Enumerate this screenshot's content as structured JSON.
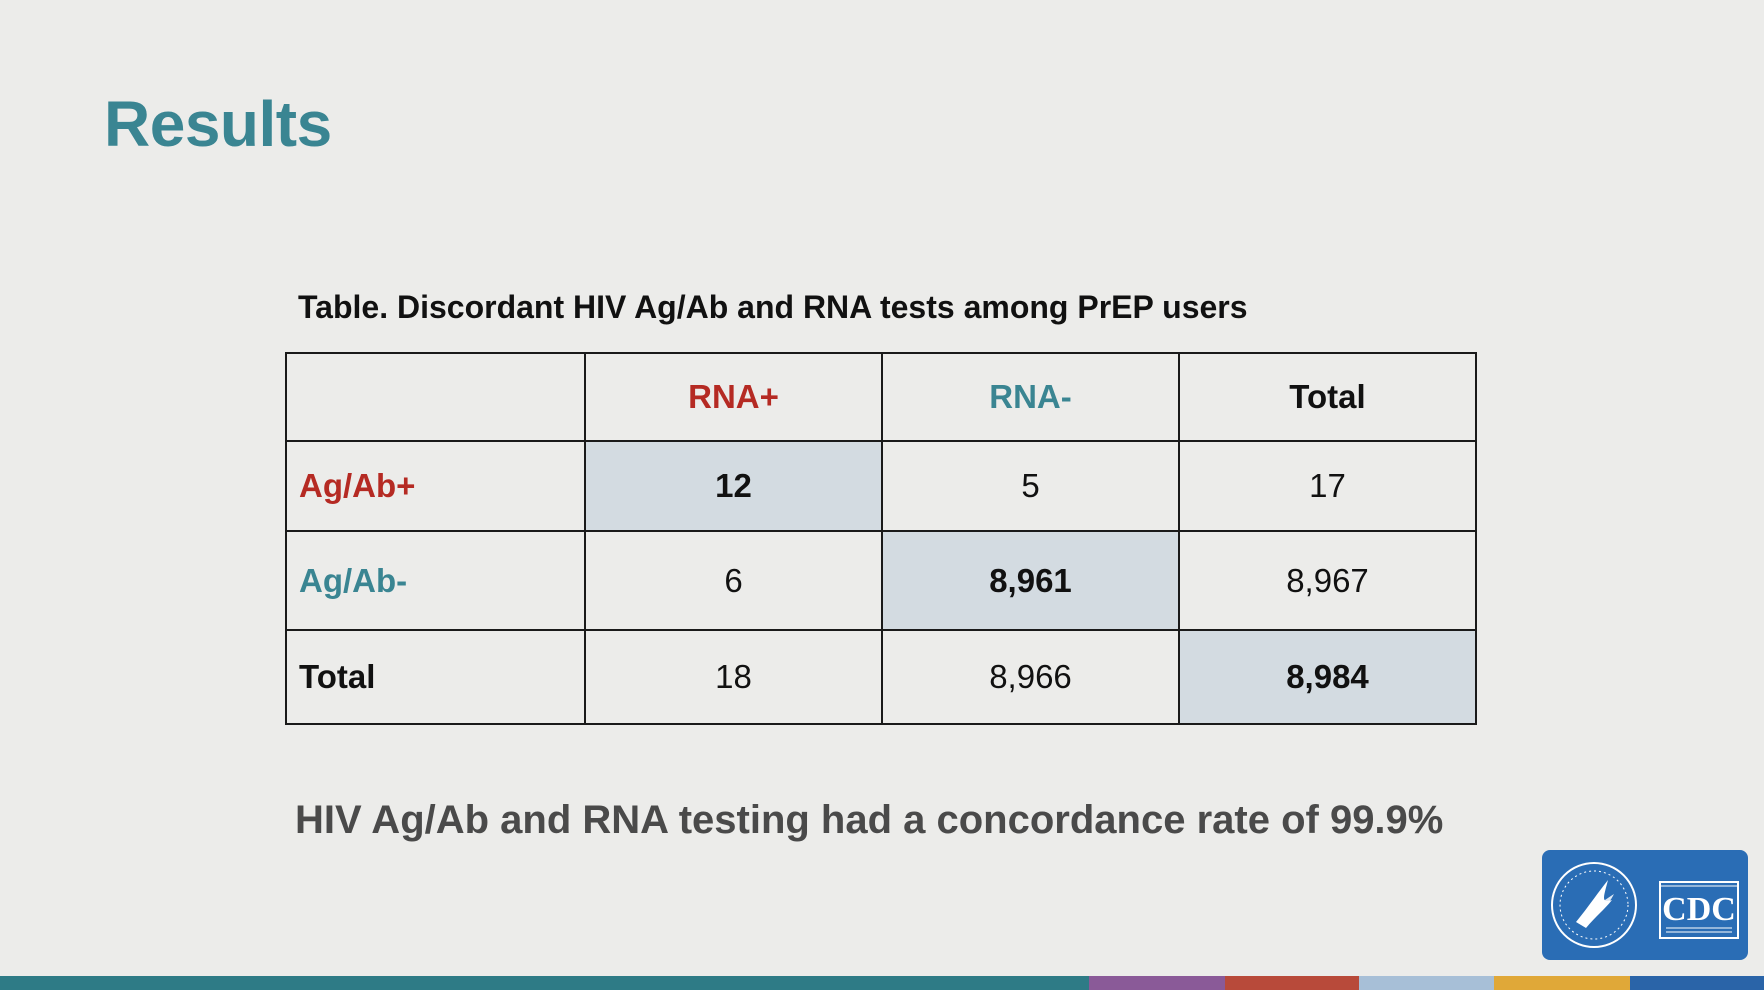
{
  "slide": {
    "title": "Results",
    "title_color": "#3a8592",
    "table_caption": "Table. Discordant HIV Ag/Ab and RNA tests among PrEP users",
    "conclusion": "HIV Ag/Ab and RNA testing had a concordance rate of 99.9%",
    "conclusion_color": "#4a4a4a"
  },
  "table": {
    "columns": [
      {
        "label": "",
        "color": "#111111"
      },
      {
        "label": "RNA+",
        "color": "#b52a23"
      },
      {
        "label": "RNA-",
        "color": "#3a8592"
      },
      {
        "label": "Total",
        "color": "#111111"
      }
    ],
    "rows": [
      {
        "label": "Ag/Ab+",
        "color": "#b52a23",
        "cells": [
          "12",
          "5",
          "17"
        ]
      },
      {
        "label": "Ag/Ab-",
        "color": "#3a8592",
        "cells": [
          "6",
          "8,961",
          "8,967"
        ]
      },
      {
        "label": "Total",
        "color": "#111111",
        "cells": [
          "18",
          "8,966",
          "8,984"
        ]
      }
    ],
    "highlight_color": "#d3dbe1"
  },
  "logo": {
    "text": "CDC",
    "background": "#2a6db5",
    "icon": "hhs-eagle-seal-icon"
  },
  "footer_colors": [
    "#2e7b86",
    "#8a5a98",
    "#b84a3a",
    "#a7bfd7",
    "#e0a838",
    "#2a64a8"
  ]
}
